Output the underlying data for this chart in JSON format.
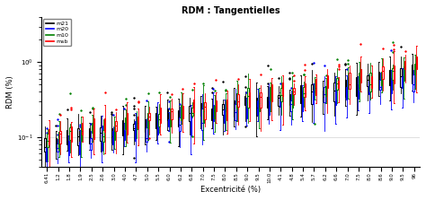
{
  "title": "RDM : Tangentielles",
  "xlabel": "Excentricité (%)",
  "ylabel": "RDM (%)",
  "colors": {
    "m21": "black",
    "m20": "blue",
    "m10": "green",
    "msb": "red"
  },
  "methods": [
    "m21",
    "m20",
    "m10",
    "msb"
  ],
  "x_labels": [
    "6.41",
    "1.2",
    "1.8",
    "1.9",
    "2.5",
    "2.6",
    "3.0",
    "3.8",
    "4.0",
    "4.7",
    "5.0",
    "5.5",
    "6.0",
    "6.2",
    "6.8",
    "7.0",
    "7.5",
    "8.0",
    "8.5",
    "9.0",
    "9.5",
    "10.0",
    "4.1",
    "4.8",
    "5.4",
    "5.7",
    "6.2",
    "6.6",
    "7.0",
    "7.5",
    "8.0",
    "8.6",
    "9.0",
    "9.5"
  ],
  "ylim_log": [
    0.04,
    3.0
  ]
}
